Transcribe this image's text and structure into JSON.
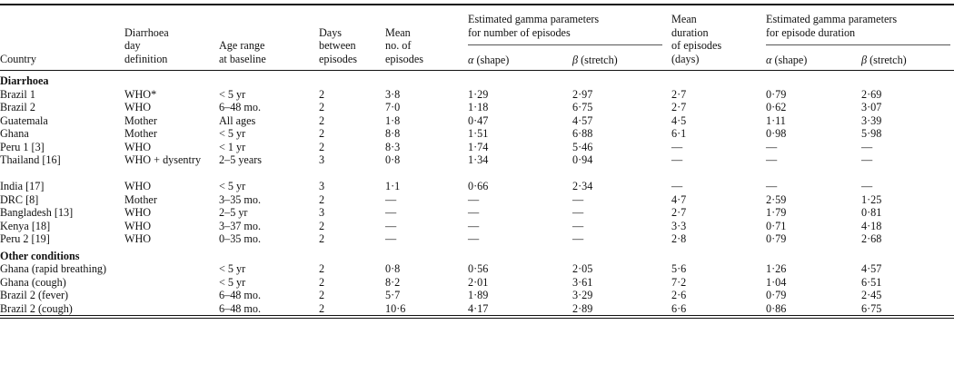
{
  "table": {
    "headers": {
      "country": "Country",
      "definition": "Diarrhoea day definition",
      "definition_lines": [
        "Diarrhoea",
        "day",
        "definition"
      ],
      "age_lines": [
        "Age range",
        "at baseline"
      ],
      "days_lines": [
        "Days",
        "between",
        "episodes"
      ],
      "mean_lines": [
        "Mean",
        "no. of",
        "episodes"
      ],
      "gamma_episodes_lines": [
        "Estimated gamma parameters",
        "for number of episodes"
      ],
      "duration_lines": [
        "Mean",
        "duration",
        "of episodes",
        "(days)"
      ],
      "gamma_duration_lines": [
        "Estimated gamma parameters",
        "for episode duration"
      ],
      "alpha_symbol": "α",
      "alpha_text": " (shape)",
      "beta_symbol": "β",
      "beta_text": " (stretch)"
    },
    "sections": [
      {
        "title": "Diarrhoea",
        "rows": [
          [
            "Brazil 1",
            "WHO*",
            "< 5 yr",
            "2",
            "3·8",
            "1·29",
            "2·97",
            "2·7",
            "0·79",
            "2·69"
          ],
          [
            "Brazil 2",
            "WHO",
            "6–48 mo.",
            "2",
            "7·0",
            "1·18",
            "6·75",
            "2·7",
            "0·62",
            "3·07"
          ],
          [
            "Guatemala",
            "Mother",
            "All ages",
            "2",
            "1·8",
            "0·47",
            "4·57",
            "4·5",
            "1·11",
            "3·39"
          ],
          [
            "Ghana",
            "Mother",
            "< 5 yr",
            "2",
            "8·8",
            "1·51",
            "6·88",
            "6·1",
            "0·98",
            "5·98"
          ],
          [
            "Peru 1 [3]",
            "WHO",
            "< 1 yr",
            "2",
            "8·3",
            "1·74",
            "5·46",
            "—",
            "—",
            "—"
          ],
          [
            "Thailand [16]",
            "WHO + dysentry",
            "2–5 years",
            "3",
            "0·8",
            "1·34",
            "0·94",
            "—",
            "—",
            "—"
          ],
          [
            "India [17]",
            "WHO",
            "< 5 yr",
            "3",
            "1·1",
            "0·66",
            "2·34",
            "—",
            "—",
            "—"
          ],
          [
            "DRC [8]",
            "Mother",
            "3–35 mo.",
            "2",
            "—",
            "—",
            "—",
            "4·7",
            "2·59",
            "1·25"
          ],
          [
            "Bangladesh [13]",
            "WHO",
            "2–5 yr",
            "3",
            "—",
            "—",
            "—",
            "2·7",
            "1·79",
            "0·81"
          ],
          [
            "Kenya [18]",
            "WHO",
            "3–37 mo.",
            "2",
            "—",
            "—",
            "—",
            "3·3",
            "0·71",
            "4·18"
          ],
          [
            "Peru 2 [19]",
            "WHO",
            "0–35 mo.",
            "2",
            "—",
            "—",
            "—",
            "2·8",
            "0·79",
            "2·68"
          ]
        ]
      },
      {
        "title": "Other conditions",
        "rows": [
          [
            "Ghana (rapid breathing)",
            "",
            "< 5 yr",
            "2",
            "0·8",
            "0·56",
            "2·05",
            "5·6",
            "1·26",
            "4·57"
          ],
          [
            "Ghana (cough)",
            "",
            "< 5 yr",
            "2",
            "8·2",
            "2·01",
            "3·61",
            "7·2",
            "1·04",
            "6·51"
          ],
          [
            "Brazil 2 (fever)",
            "",
            "6–48 mo.",
            "2",
            "5·7",
            "1·89",
            "3·29",
            "2·6",
            "0·79",
            "2·45"
          ],
          [
            "Brazil 2 (cough)",
            "",
            "6–48 mo.",
            "2",
            "10·6",
            "4·17",
            "2·89",
            "6·6",
            "0·86",
            "6·75"
          ]
        ]
      }
    ]
  }
}
